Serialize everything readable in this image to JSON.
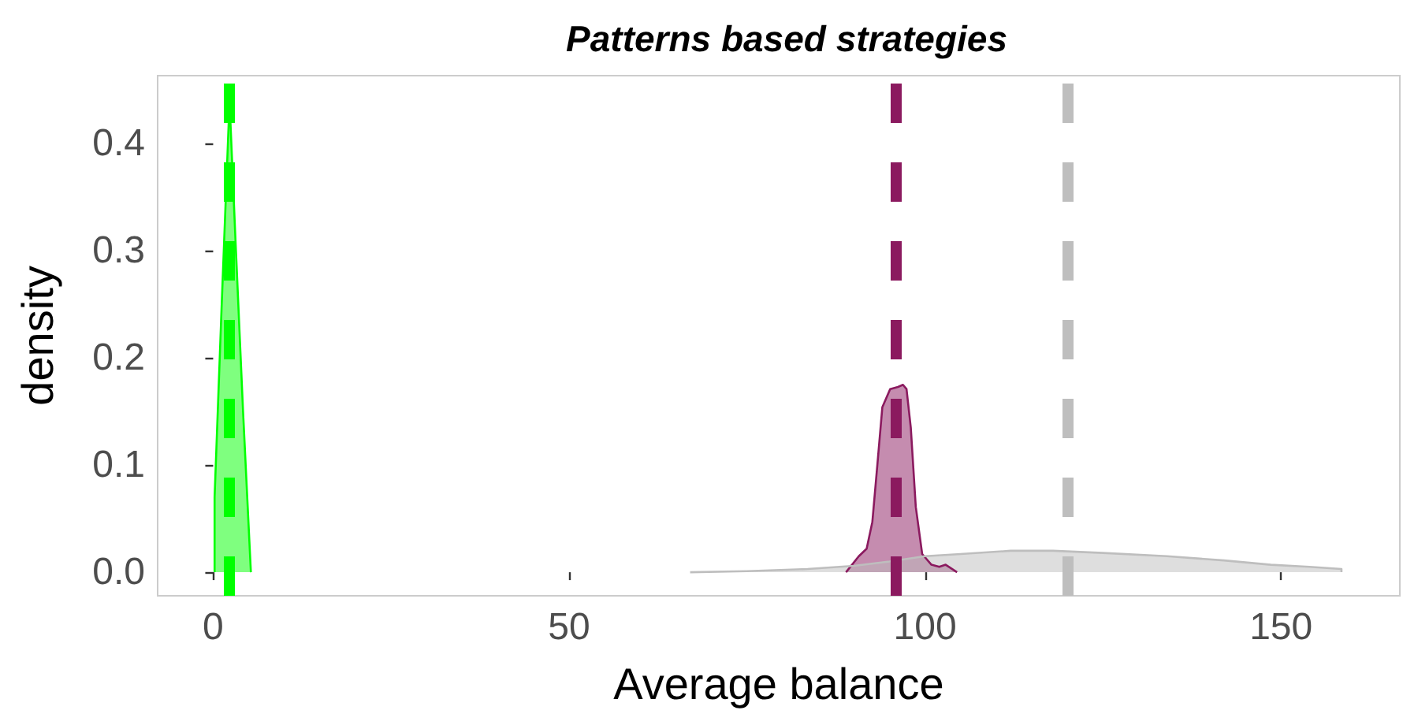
{
  "chart_data": {
    "type": "area",
    "title": "Patterns based strategies",
    "xlabel": "Average balance",
    "ylabel": "density",
    "xlim": [
      -7.8,
      166.7
    ],
    "xticks": [
      0,
      50,
      100,
      150
    ],
    "ylim": [
      -0.022,
      0.4636
    ],
    "yticks": [
      {
        "value": 0,
        "label": "0.0"
      },
      0.1,
      0.2,
      0.3,
      0.4
    ],
    "grid": false,
    "series": [
      {
        "color": "#00ff00",
        "x": [
          0.2,
          0.2,
          1.2,
          2.3,
          3.2,
          4.2,
          5.3
        ],
        "values": [
          0,
          0.07,
          0.25,
          0.44,
          0.3,
          0.15,
          0
        ]
      },
      {
        "color": "#8b1a5f",
        "x": [
          88.9,
          90.7,
          91.8,
          92.6,
          93.3,
          94.0,
          95.1,
          96.2,
          96.9,
          97.4,
          98.0,
          98.7,
          99.6,
          100.9,
          102.0,
          102.9,
          104.5
        ],
        "values": [
          0,
          0.015,
          0.022,
          0.047,
          0.1,
          0.154,
          0.171,
          0.173,
          0.175,
          0.171,
          0.135,
          0.061,
          0.017,
          0.007,
          0.005,
          0.007,
          0
        ]
      },
      {
        "color": "#bebebe",
        "x": [
          67,
          75,
          83.5,
          90,
          95,
          100,
          105,
          112,
          118,
          125,
          134,
          142,
          148.6,
          154,
          158.5,
          158.5
        ],
        "values": [
          0,
          0.001,
          0.003,
          0.006,
          0.01,
          0.015,
          0.017,
          0.02,
          0.02,
          0.018,
          0.015,
          0.011,
          0.007,
          0.005,
          0.003,
          0
        ]
      }
    ],
    "ref_lines": [
      {
        "axis": "x",
        "value": 2.3,
        "color": "#00ff00",
        "line_style": "dashed"
      },
      {
        "axis": "x",
        "value": 96,
        "color": "#8b1a5f",
        "line_style": "dashed"
      },
      {
        "axis": "x",
        "value": 120,
        "color": "#bebebe",
        "line_style": "dashed"
      }
    ]
  }
}
